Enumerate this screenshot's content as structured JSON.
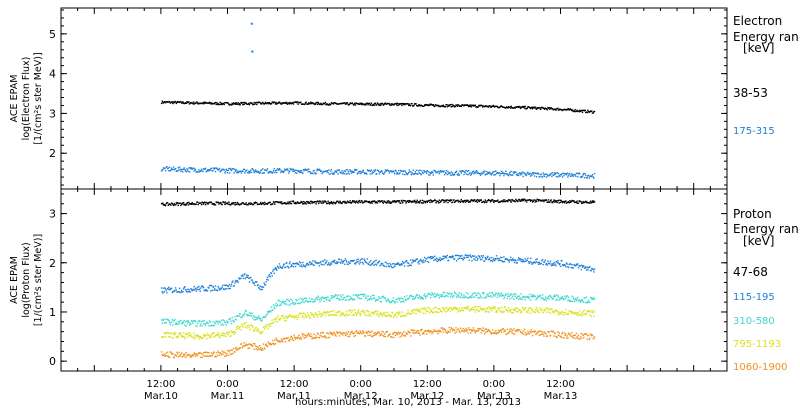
{
  "chart_data": [
    {
      "type": "scatter",
      "panel": "electron",
      "ylabel_lines": [
        "ACE EPAM",
        "log(Electron Flux)",
        "[1/(cm²s ster MeV)]"
      ],
      "ylim": [
        1.1,
        5.65
      ],
      "yticks": [
        2,
        3,
        4,
        5
      ],
      "legend_title_lines": [
        "Electron",
        "Energy ran",
        "[keV]"
      ],
      "series": [
        {
          "name": "38-53",
          "color": "#000000",
          "x": [
            0,
            6,
            12,
            18,
            24,
            30,
            36,
            42,
            48,
            54,
            60,
            66,
            72,
            78
          ],
          "y": [
            3.3,
            3.28,
            3.26,
            3.27,
            3.28,
            3.26,
            3.25,
            3.25,
            3.22,
            3.21,
            3.19,
            3.16,
            3.12,
            3.05
          ]
        },
        {
          "name": "175-315",
          "color": "#1e7fd6",
          "x": [
            0,
            6,
            12,
            18,
            24,
            30,
            36,
            42,
            48,
            54,
            60,
            66,
            72,
            78
          ],
          "y": [
            1.62,
            1.6,
            1.58,
            1.57,
            1.58,
            1.55,
            1.55,
            1.54,
            1.53,
            1.52,
            1.52,
            1.48,
            1.47,
            1.45
          ]
        }
      ],
      "outliers": [
        {
          "x": 16.2,
          "y": 5.28
        },
        {
          "x": 16.3,
          "y": 4.58
        }
      ]
    },
    {
      "type": "scatter",
      "panel": "proton",
      "ylabel_lines": [
        "ACE EPAM",
        "log(Proton Flux)",
        "[1/(cm²s ster MeV)]"
      ],
      "ylim": [
        -0.2,
        3.5
      ],
      "yticks": [
        0,
        1,
        2,
        3
      ],
      "legend_title_lines": [
        "Proton",
        "Energy ran",
        "[keV]"
      ],
      "series": [
        {
          "name": "47-68",
          "color": "#000000",
          "x": [
            0,
            6,
            12,
            18,
            24,
            30,
            36,
            42,
            48,
            54,
            60,
            66,
            72,
            78
          ],
          "y": [
            3.2,
            3.22,
            3.22,
            3.22,
            3.24,
            3.24,
            3.25,
            3.25,
            3.26,
            3.27,
            3.27,
            3.28,
            3.26,
            3.24
          ]
        },
        {
          "name": "115-195",
          "color": "#1e7fd6",
          "x": [
            0,
            6,
            12,
            15,
            18,
            21,
            24,
            30,
            36,
            42,
            48,
            54,
            60,
            66,
            72,
            78
          ],
          "y": [
            1.45,
            1.48,
            1.52,
            1.75,
            1.5,
            1.95,
            1.98,
            2.02,
            2.05,
            1.95,
            2.08,
            2.12,
            2.1,
            2.05,
            2.0,
            1.88
          ]
        },
        {
          "name": "310-580",
          "color": "#3fd8cf",
          "x": [
            0,
            6,
            12,
            15,
            18,
            21,
            24,
            30,
            36,
            42,
            48,
            54,
            60,
            66,
            72,
            78
          ],
          "y": [
            0.82,
            0.78,
            0.8,
            1.0,
            0.85,
            1.2,
            1.22,
            1.3,
            1.32,
            1.25,
            1.35,
            1.36,
            1.35,
            1.32,
            1.3,
            1.25
          ]
        },
        {
          "name": "795-1193",
          "color": "#d8e21a",
          "x": [
            0,
            6,
            12,
            15,
            18,
            21,
            24,
            30,
            36,
            42,
            48,
            54,
            60,
            66,
            72,
            78
          ],
          "y": [
            0.55,
            0.52,
            0.55,
            0.75,
            0.62,
            0.88,
            0.92,
            0.98,
            1.0,
            0.95,
            1.05,
            1.08,
            1.06,
            1.05,
            1.02,
            0.98
          ]
        },
        {
          "name": "1060-1900",
          "color": "#f0901e",
          "x": [
            0,
            6,
            12,
            15,
            18,
            21,
            24,
            30,
            36,
            42,
            48,
            54,
            60,
            66,
            72,
            78
          ],
          "y": [
            0.15,
            0.12,
            0.18,
            0.35,
            0.28,
            0.45,
            0.5,
            0.55,
            0.58,
            0.55,
            0.62,
            0.65,
            0.62,
            0.6,
            0.55,
            0.5
          ]
        }
      ]
    }
  ],
  "x_axis": {
    "range_hours": [
      -18,
      102
    ],
    "ticks": [
      {
        "hour": 0,
        "time": "12:00",
        "date": "Mar.10"
      },
      {
        "hour": 12,
        "time": "0:00",
        "date": "Mar.11"
      },
      {
        "hour": 24,
        "time": "12:00",
        "date": "Mar.11"
      },
      {
        "hour": 36,
        "time": "0:00",
        "date": "Mar.12"
      },
      {
        "hour": 48,
        "time": "12:00",
        "date": "Mar.12"
      },
      {
        "hour": 60,
        "time": "0:00",
        "date": "Mar.13"
      },
      {
        "hour": 72,
        "time": "12:00",
        "date": "Mar.13"
      }
    ],
    "label": "hours:minutes, Mar. 10, 2013 - Mar. 13, 2013"
  }
}
